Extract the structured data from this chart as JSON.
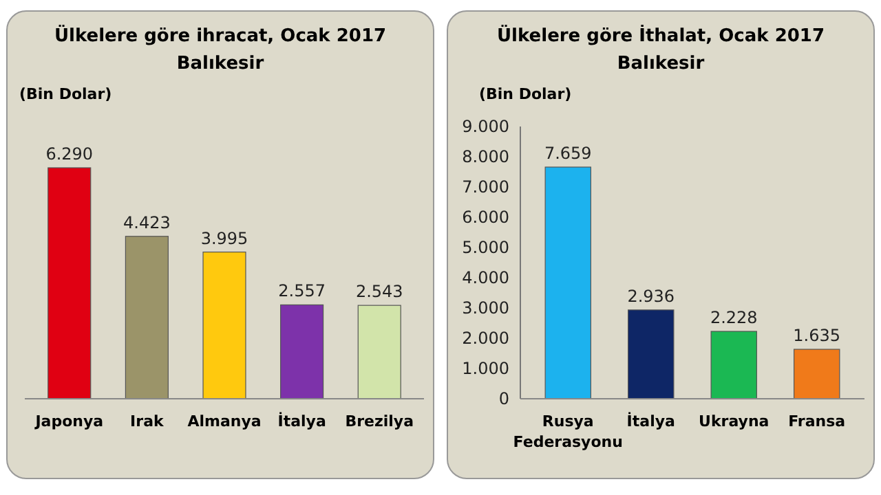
{
  "chart_data": [
    {
      "type": "bar",
      "title": "Ülkelere göre ihracat, Ocak 2017",
      "subtitle": "Balıkesir",
      "ylabel": "(Bin Dolar)",
      "categories": [
        "Japonya",
        "Irak",
        "Almanya",
        "İtalya",
        "Brezilya"
      ],
      "values": [
        6290,
        4423,
        3995,
        2557,
        2543
      ],
      "value_labels": [
        "6.290",
        "4.423",
        "3.995",
        "2.557",
        "2.543"
      ],
      "colors": [
        "#e00012",
        "#9b9469",
        "#ffc90e",
        "#7d32aa",
        "#d2e4aa"
      ],
      "tick_labels": "x"
    },
    {
      "type": "bar",
      "title": "Ülkelere göre İthalat, Ocak 2017",
      "subtitle": "Balıkesir",
      "ylabel": "(Bin Dolar)",
      "categories": [
        "Rusya Federasyonu",
        "İtalya",
        "Ukrayna",
        "Fransa"
      ],
      "values": [
        7659,
        2936,
        2228,
        1635
      ],
      "value_labels": [
        "7.659",
        "2.936",
        "2.228",
        "1.635"
      ],
      "colors": [
        "#1cb2ee",
        "#0e2666",
        "#1bb853",
        "#f07a1a"
      ],
      "ylim": [
        0,
        9000
      ],
      "yticks": [
        {
          "value": 0,
          "label": "0"
        },
        {
          "value": 1000,
          "label": "1.000"
        },
        {
          "value": 2000,
          "label": "2.000"
        },
        {
          "value": 3000,
          "label": "3.000"
        },
        {
          "value": 4000,
          "label": "4.000"
        },
        {
          "value": 5000,
          "label": "5.000"
        },
        {
          "value": 6000,
          "label": "6.000"
        },
        {
          "value": 7000,
          "label": "7.000"
        },
        {
          "value": 8000,
          "label": "8.000"
        },
        {
          "value": 9000,
          "label": "9.000"
        }
      ]
    }
  ]
}
